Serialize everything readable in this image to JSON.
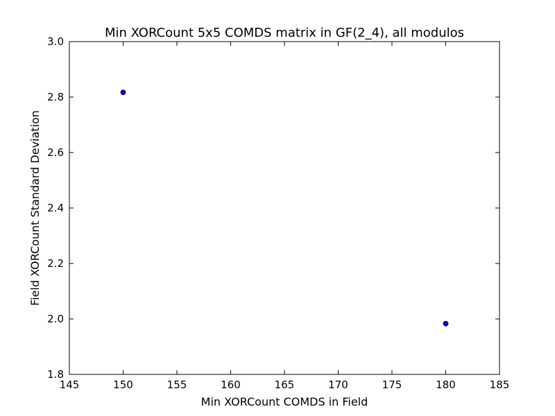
{
  "chart_data": {
    "type": "scatter",
    "title": "Min XORCount 5x5 COMDS matrix in GF(2_4), all modulos",
    "xlabel": "Min XORCount COMDS in Field",
    "ylabel": "Field XORCount Standard Deviation",
    "xlim": [
      145,
      185
    ],
    "ylim": [
      1.8,
      3.0
    ],
    "xticks": [
      145,
      150,
      155,
      160,
      165,
      170,
      175,
      180,
      185
    ],
    "yticks": [
      1.8,
      2.0,
      2.2,
      2.4,
      2.6,
      2.8,
      3.0
    ],
    "xtick_labels": [
      "145",
      "150",
      "155",
      "160",
      "165",
      "170",
      "175",
      "180",
      "185"
    ],
    "ytick_labels": [
      "1.8",
      "2.0",
      "2.2",
      "2.4",
      "2.6",
      "2.8",
      "3.0"
    ],
    "grid": false,
    "series": [
      {
        "x": [
          150,
          180
        ],
        "y": [
          2.817,
          1.983
        ],
        "color": "#0000ff"
      }
    ]
  }
}
